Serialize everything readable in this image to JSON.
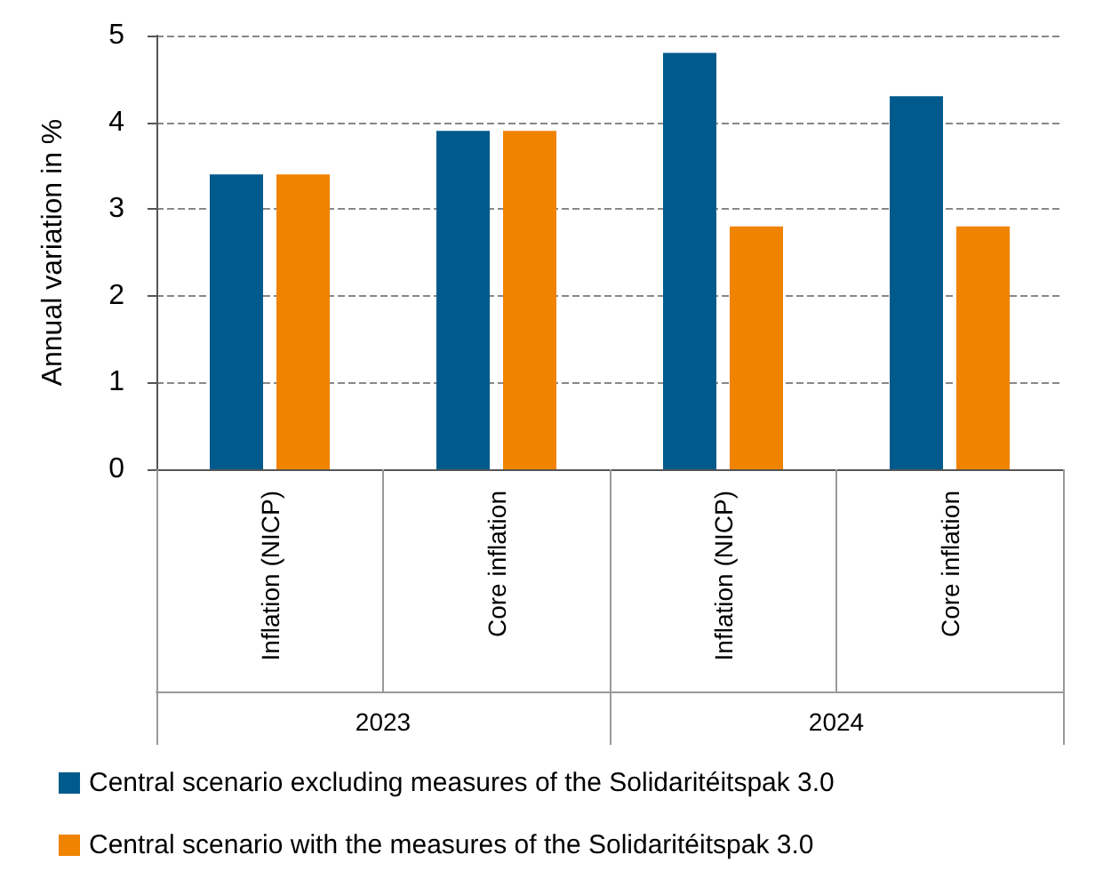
{
  "chart_data": {
    "type": "bar",
    "ylabel": "Annual variation in %",
    "categories": [
      "Inflation (NICP)",
      "Core inflation",
      "Inflation (NICP)",
      "Core inflation"
    ],
    "annotations": [
      "2023",
      "2024"
    ],
    "series": [
      {
        "name": "Central scenario excluding measures of the Solidaritéitspak 3.0",
        "color": "#005b8c",
        "values": [
          3.4,
          3.9,
          4.8,
          4.3
        ]
      },
      {
        "name": "Central scenario with the measures of the Solidaritéitspak 3.0",
        "color": "#f08300",
        "values": [
          3.4,
          3.9,
          2.8,
          2.8
        ]
      }
    ],
    "ylim": [
      0,
      5
    ],
    "yticks": [
      0,
      1,
      2,
      3,
      4,
      5
    ],
    "grid": "y",
    "legend": "bottom"
  }
}
